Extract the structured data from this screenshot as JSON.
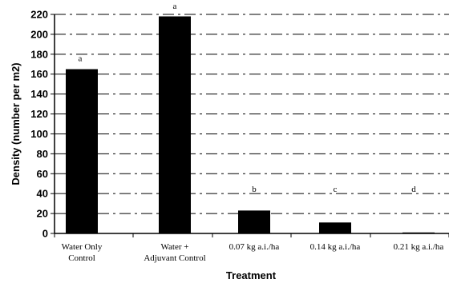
{
  "chart_data": {
    "type": "bar",
    "categories": [
      [
        "Water Only",
        "Control"
      ],
      [
        "Water +",
        "Adjuvant Control"
      ],
      [
        "0.07 kg a.i./ha"
      ],
      [
        "0.14 kg a.i./ha"
      ],
      [
        "0.21 kg a.i./ha"
      ]
    ],
    "values": [
      165,
      218,
      23,
      11,
      1
    ],
    "letters": [
      "a",
      "a",
      "b",
      "c",
      "d"
    ],
    "xlabel": "Treatment",
    "ylabel": "Density (number per m2)",
    "ylim": [
      0,
      220
    ],
    "ytick_step": 20,
    "grid": true,
    "grid_style": "dash-dot",
    "bar_color": "#000000"
  }
}
